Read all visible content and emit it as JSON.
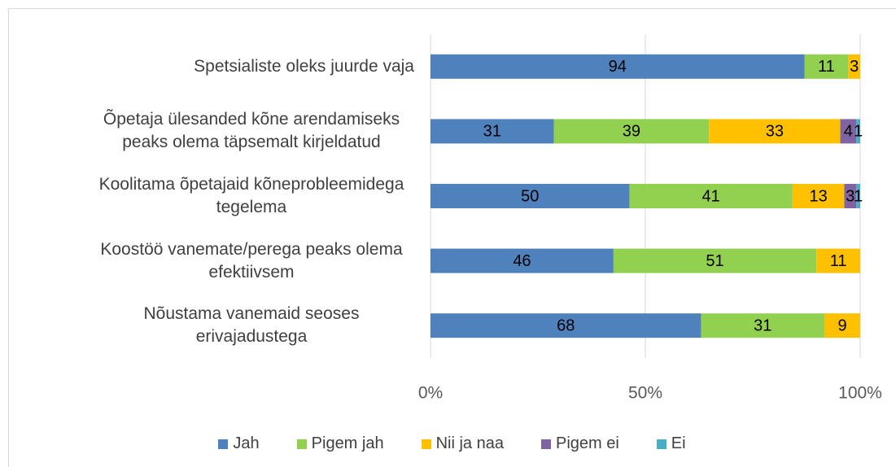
{
  "chart_data": {
    "type": "bar",
    "orientation": "horizontal",
    "stack": "percent",
    "categories": [
      "Spetsialiste oleks juurde vaja",
      "Õpetaja ülesanded kõne arendamiseks peaks olema täpsemalt kirjeldatud",
      "Koolitama õpetajaid kõneprobleemidega tegelema",
      "Koostöö vanemate/perega peaks olema efektiivsem",
      "Nõustama vanemaid seoses erivajadustega"
    ],
    "series": [
      {
        "name": "Jah",
        "color": "#4f81bd",
        "values": [
          94,
          31,
          50,
          46,
          68
        ]
      },
      {
        "name": "Pigem jah",
        "color": "#92d050",
        "values": [
          11,
          39,
          41,
          51,
          31
        ]
      },
      {
        "name": "Nii ja naa",
        "color": "#ffc000",
        "values": [
          3,
          33,
          13,
          11,
          9
        ]
      },
      {
        "name": "Pigem ei",
        "color": "#8064a2",
        "values": [
          null,
          4,
          3,
          null,
          null
        ]
      },
      {
        "name": "Ei",
        "color": "#4bacc6",
        "values": [
          null,
          1,
          1,
          null,
          null
        ]
      }
    ],
    "xlim": [
      0,
      100
    ],
    "xticks": [
      {
        "value": 0,
        "label": "0%"
      },
      {
        "value": 50,
        "label": "50%"
      },
      {
        "value": 100,
        "label": "100%"
      }
    ],
    "grid": true,
    "legend": "bottom",
    "data_labels": true
  }
}
